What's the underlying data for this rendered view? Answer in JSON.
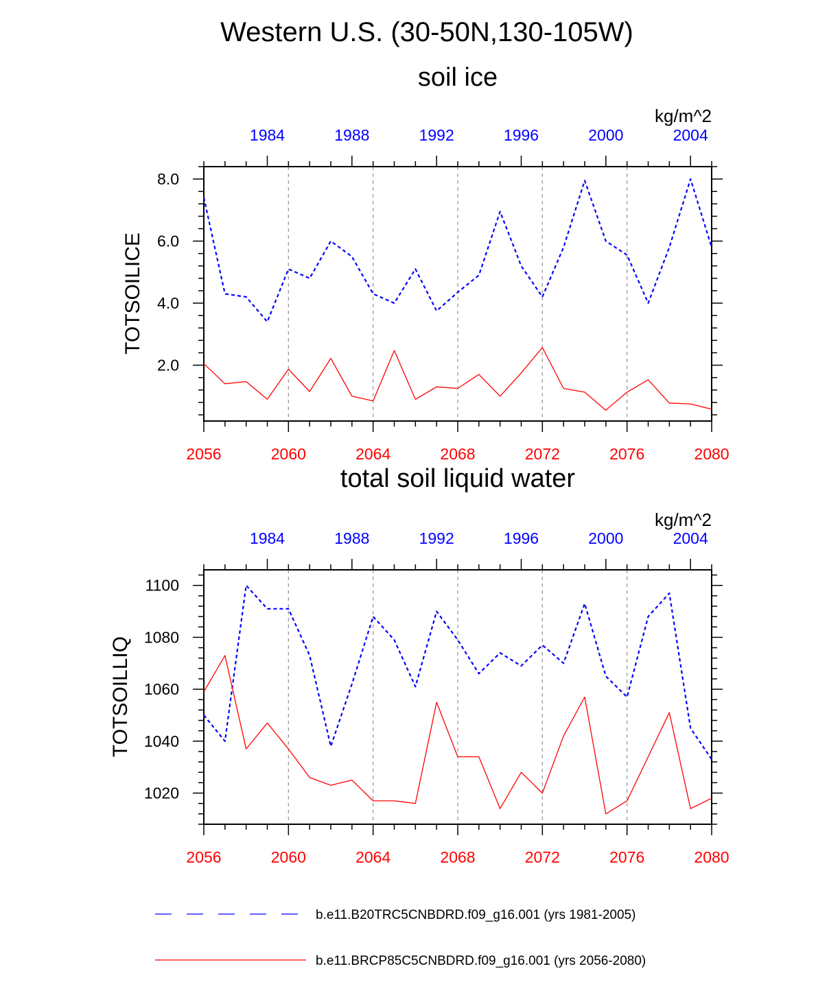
{
  "page_title": "Western U.S. (30-50N,130-105W)",
  "colors": {
    "historical": "#0000ff",
    "future": "#ff0000",
    "axis": "#000000",
    "gridline": "#999999"
  },
  "chart_data": [
    {
      "type": "line",
      "title": "soil ice",
      "ylabel": "TOTSOILICE",
      "units": "kg/m^2",
      "ylim": [
        0.2,
        8.4
      ],
      "yticks": [
        2.0,
        4.0,
        6.0,
        8.0
      ],
      "ytick_labels": [
        "2.0",
        "4.0",
        "6.0",
        "8.0"
      ],
      "y_minor_step": 0.4,
      "bottom_axis": {
        "range": [
          2056,
          2080
        ],
        "ticks": [
          2056,
          2060,
          2064,
          2068,
          2072,
          2076,
          2080
        ],
        "color": "red"
      },
      "top_axis": {
        "range": [
          1981,
          2005
        ],
        "ticks": [
          1984,
          1988,
          1992,
          1996,
          2000,
          2004
        ],
        "color": "blue"
      },
      "grid": "vertical dashed at major bottom ticks",
      "series": [
        {
          "name": "b.e11.B20TRC5CNBDRD.f09_g16.001 (yrs 1981-2005)",
          "axis": "top",
          "style": "dashed",
          "color": "blue",
          "x": [
            1981,
            1982,
            1983,
            1984,
            1985,
            1986,
            1987,
            1988,
            1989,
            1990,
            1991,
            1992,
            1993,
            1994,
            1995,
            1996,
            1997,
            1998,
            1999,
            2000,
            2001,
            2002,
            2003,
            2004,
            2005
          ],
          "values": [
            7.4,
            4.3,
            4.2,
            3.4,
            5.1,
            4.8,
            6.0,
            5.5,
            4.3,
            4.0,
            5.1,
            3.75,
            4.35,
            4.9,
            6.95,
            5.2,
            4.2,
            5.8,
            7.95,
            6.0,
            5.55,
            4.0,
            5.8,
            8.0,
            5.8
          ]
        },
        {
          "name": "b.e11.BRCP85C5CNBDRD.f09_g16.001 (yrs 2056-2080)",
          "axis": "bottom",
          "style": "solid",
          "color": "red",
          "x": [
            2056,
            2057,
            2058,
            2059,
            2060,
            2061,
            2062,
            2063,
            2064,
            2065,
            2066,
            2067,
            2068,
            2069,
            2070,
            2071,
            2072,
            2073,
            2074,
            2075,
            2076,
            2077,
            2078,
            2079,
            2080
          ],
          "values": [
            2.05,
            1.4,
            1.47,
            0.9,
            1.87,
            1.15,
            2.22,
            1.0,
            0.85,
            2.47,
            0.9,
            1.3,
            1.25,
            1.7,
            1.0,
            1.75,
            2.57,
            1.25,
            1.13,
            0.55,
            1.13,
            1.53,
            0.78,
            0.75,
            0.58
          ]
        }
      ]
    },
    {
      "type": "line",
      "title": "total soil liquid water",
      "ylabel": "TOTSOILLIQ",
      "units": "kg/m^2",
      "ylim": [
        1008,
        1106
      ],
      "yticks": [
        1020,
        1040,
        1060,
        1080,
        1100
      ],
      "ytick_labels": [
        "1020",
        "1040",
        "1060",
        "1080",
        "1100"
      ],
      "y_minor_step": 4,
      "bottom_axis": {
        "range": [
          2056,
          2080
        ],
        "ticks": [
          2056,
          2060,
          2064,
          2068,
          2072,
          2076,
          2080
        ],
        "color": "red"
      },
      "top_axis": {
        "range": [
          1981,
          2005
        ],
        "ticks": [
          1984,
          1988,
          1992,
          1996,
          2000,
          2004
        ],
        "color": "blue"
      },
      "grid": "vertical dashed at major bottom ticks",
      "series": [
        {
          "name": "b.e11.B20TRC5CNBDRD.f09_g16.001 (yrs 1981-2005)",
          "axis": "top",
          "style": "dashed",
          "color": "blue",
          "x": [
            1981,
            1982,
            1983,
            1984,
            1985,
            1986,
            1987,
            1988,
            1989,
            1990,
            1991,
            1992,
            1993,
            1994,
            1995,
            1996,
            1997,
            1998,
            1999,
            2000,
            2001,
            2002,
            2003,
            2004,
            2005
          ],
          "values": [
            1050,
            1040,
            1100,
            1091,
            1091,
            1073,
            1038,
            1062,
            1088,
            1079,
            1061,
            1090,
            1079,
            1066,
            1074,
            1069,
            1077,
            1070,
            1093,
            1065,
            1057,
            1088,
            1097,
            1045,
            1033
          ]
        },
        {
          "name": "b.e11.BRCP85C5CNBDRD.f09_g16.001 (yrs 2056-2080)",
          "axis": "bottom",
          "style": "solid",
          "color": "red",
          "x": [
            2056,
            2057,
            2058,
            2059,
            2060,
            2061,
            2062,
            2063,
            2064,
            2065,
            2066,
            2067,
            2068,
            2069,
            2070,
            2071,
            2072,
            2073,
            2074,
            2075,
            2076,
            2077,
            2078,
            2079,
            2080
          ],
          "values": [
            1059,
            1073,
            1037,
            1047,
            1037,
            1026,
            1023,
            1025,
            1017,
            1017,
            1016,
            1055,
            1034,
            1034,
            1014,
            1028,
            1020,
            1042,
            1057,
            1012,
            1017,
            1034,
            1051,
            1014,
            1018
          ]
        }
      ]
    }
  ],
  "legend": {
    "placement": "bottom",
    "items": [
      {
        "label": "b.e11.B20TRC5CNBDRD.f09_g16.001 (yrs 1981-2005)",
        "color": "blue",
        "style": "dashed"
      },
      {
        "label": "b.e11.BRCP85C5CNBDRD.f09_g16.001 (yrs 2056-2080)",
        "color": "red",
        "style": "solid"
      }
    ]
  }
}
